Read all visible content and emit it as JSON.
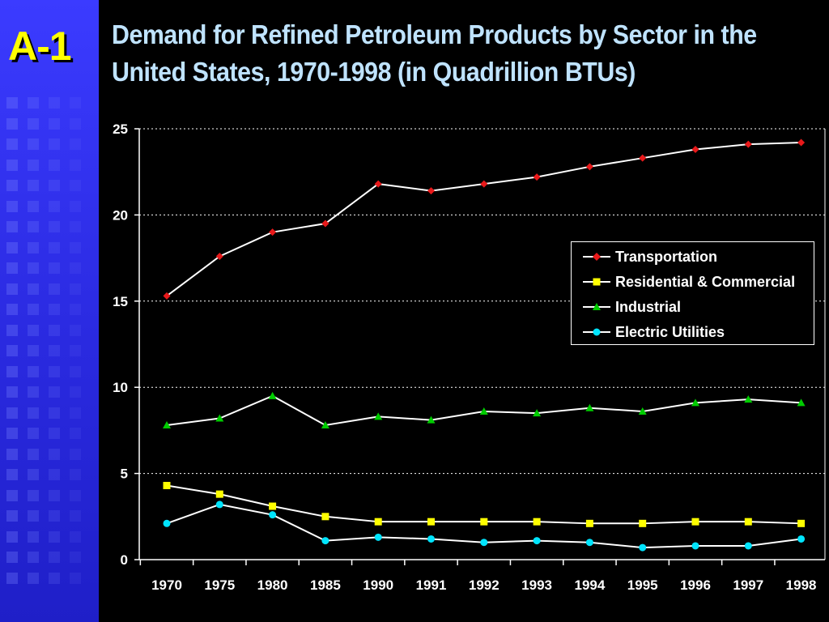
{
  "slide": {
    "label": "A-1",
    "title": "Demand for Refined Petroleum Products by Sector in the United States, 1970-1998 (in Quadrillion BTUs)"
  },
  "colors": {
    "background": "#000000",
    "side_panel": "#2a2ae0",
    "label": "#ffff00",
    "title": "#bfe3ff",
    "line": "#ffffff",
    "grid": "#ffffff"
  },
  "chart_data": {
    "type": "line",
    "categories": [
      "1970",
      "1975",
      "1980",
      "1985",
      "1990",
      "1991",
      "1992",
      "1993",
      "1994",
      "1995",
      "1996",
      "1997",
      "1998"
    ],
    "series": [
      {
        "name": "Transportation",
        "marker": "diamond",
        "color": "#e8191a",
        "values": [
          15.3,
          17.6,
          19.0,
          19.5,
          21.8,
          21.4,
          21.8,
          22.2,
          22.8,
          23.3,
          23.8,
          24.1,
          24.2
        ]
      },
      {
        "name": "Residential & Commercial",
        "marker": "square",
        "color": "#ffff00",
        "values": [
          4.3,
          3.8,
          3.1,
          2.5,
          2.2,
          2.2,
          2.2,
          2.2,
          2.1,
          2.1,
          2.2,
          2.2,
          2.1
        ]
      },
      {
        "name": "Industrial",
        "marker": "triangle",
        "color": "#00cc00",
        "values": [
          7.8,
          8.2,
          9.5,
          7.8,
          8.3,
          8.1,
          8.6,
          8.5,
          8.8,
          8.6,
          9.1,
          9.3,
          9.1
        ]
      },
      {
        "name": "Electric Utilities",
        "marker": "circle",
        "color": "#00e5ff",
        "values": [
          2.1,
          3.2,
          2.6,
          1.1,
          1.3,
          1.2,
          1.0,
          1.1,
          1.0,
          0.7,
          0.8,
          0.8,
          1.2
        ]
      }
    ],
    "ylim": [
      0,
      25
    ],
    "yticks": [
      0,
      5,
      10,
      15,
      20,
      25
    ],
    "grid": "horizontal dotted",
    "legend_position": "right"
  }
}
